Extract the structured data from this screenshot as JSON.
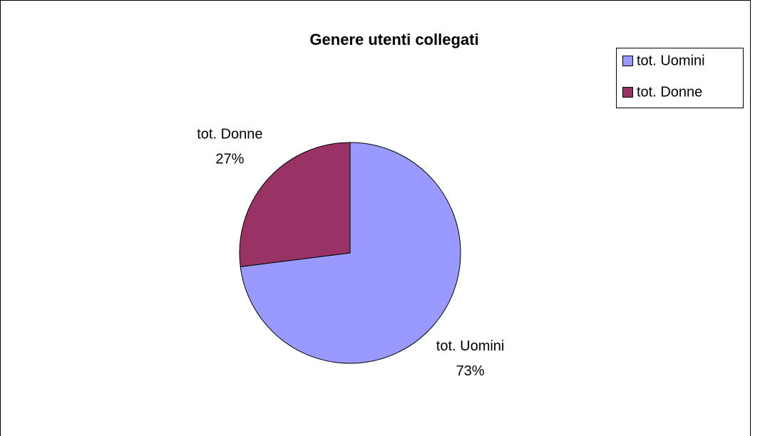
{
  "chart_data": {
    "type": "pie",
    "title": "Genere utenti collegati",
    "categories": [
      "tot. Uomini",
      "tot. Donne"
    ],
    "values": [
      73,
      27
    ],
    "value_labels": [
      "73%",
      "27%"
    ],
    "colors": [
      "#9999ff",
      "#993366"
    ],
    "legend": "top-right"
  }
}
